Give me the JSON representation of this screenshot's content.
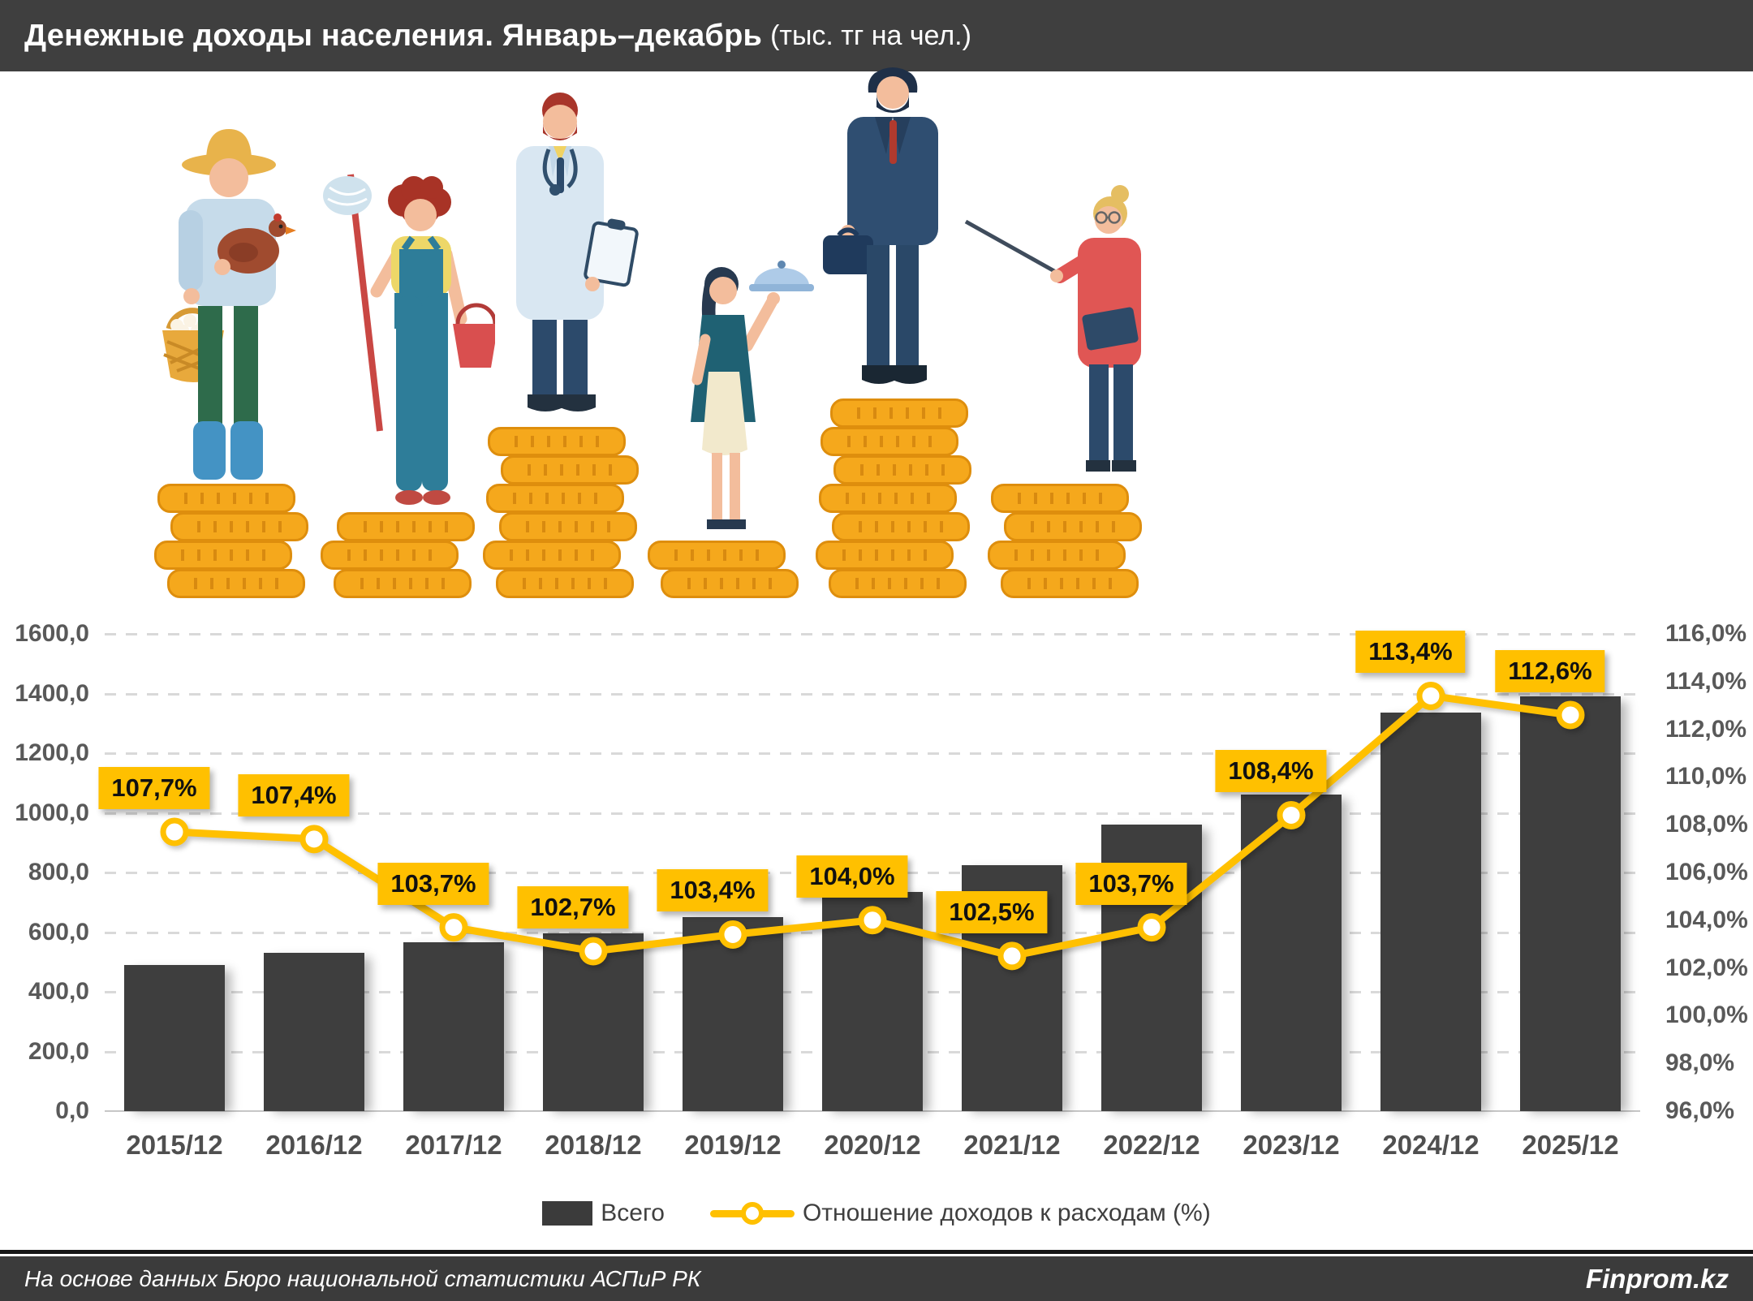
{
  "header": {
    "title": "Денежные доходы населения. Январь–декабрь",
    "title_suffix": "(тыс. тг на чел.)"
  },
  "illustration": {
    "characters": [
      {
        "id": "farmer",
        "coin_rows": 4
      },
      {
        "id": "cleaner",
        "coin_rows": 3
      },
      {
        "id": "doctor",
        "coin_rows": 6
      },
      {
        "id": "waitress",
        "coin_rows": 2
      },
      {
        "id": "businessman",
        "coin_rows": 7
      },
      {
        "id": "teacher",
        "coin_rows": 4
      }
    ],
    "coin_color": "#F5A81C",
    "coin_border": "#DE8E0D"
  },
  "chart_data": {
    "type": "bar+line",
    "title": "Денежные доходы населения. Январь–декабрь (тыс. тг на чел.)",
    "categories": [
      "2015/12",
      "2016/12",
      "2017/12",
      "2018/12",
      "2019/12",
      "2020/12",
      "2021/12",
      "2022/12",
      "2023/12",
      "2024/12",
      "2025/12"
    ],
    "series": [
      {
        "name": "Всего",
        "type": "bar",
        "axis": "left",
        "color": "#3E3E3E",
        "values": [
          490,
          530,
          565,
          595,
          650,
          735,
          825,
          960,
          1060,
          1335,
          1390
        ]
      },
      {
        "name": "Отношение доходов к расходам (%)",
        "type": "line",
        "axis": "right",
        "color": "#FFC000",
        "values": [
          107.7,
          107.4,
          103.7,
          102.7,
          103.4,
          104.0,
          102.5,
          103.7,
          108.4,
          113.4,
          112.6
        ],
        "point_labels": [
          "107,7%",
          "107,4%",
          "103,7%",
          "102,7%",
          "103,4%",
          "104,0%",
          "102,5%",
          "103,7%",
          "108,4%",
          "113,4%",
          "112,6%"
        ]
      }
    ],
    "left_axis": {
      "min": 0,
      "max": 1600,
      "step": 200,
      "tick_labels": [
        "0,0",
        "200,0",
        "400,0",
        "600,0",
        "800,0",
        "1000,0",
        "1200,0",
        "1400,0",
        "1600,0"
      ]
    },
    "right_axis": {
      "min": 96,
      "max": 116,
      "step": 2,
      "tick_labels": [
        "96,0%",
        "98,0%",
        "100,0%",
        "102,0%",
        "104,0%",
        "106,0%",
        "108,0%",
        "110,0%",
        "112,0%",
        "114,0%",
        "116,0%"
      ]
    },
    "grid": true,
    "legend_position": "bottom"
  },
  "legend": {
    "bar_label": "Всего",
    "line_label": "Отношение доходов к расходам (%)"
  },
  "footer": {
    "source": "На основе данных Бюро национальной статистики АСПиР РК",
    "brand": "Finprom.kz"
  },
  "colors": {
    "header_bg": "#3F3F3F",
    "bar": "#3E3E3E",
    "accent": "#FFC000",
    "axis_text": "#595959",
    "grid": "#D9D9D9",
    "footer_bg": "#3B3B3B"
  }
}
